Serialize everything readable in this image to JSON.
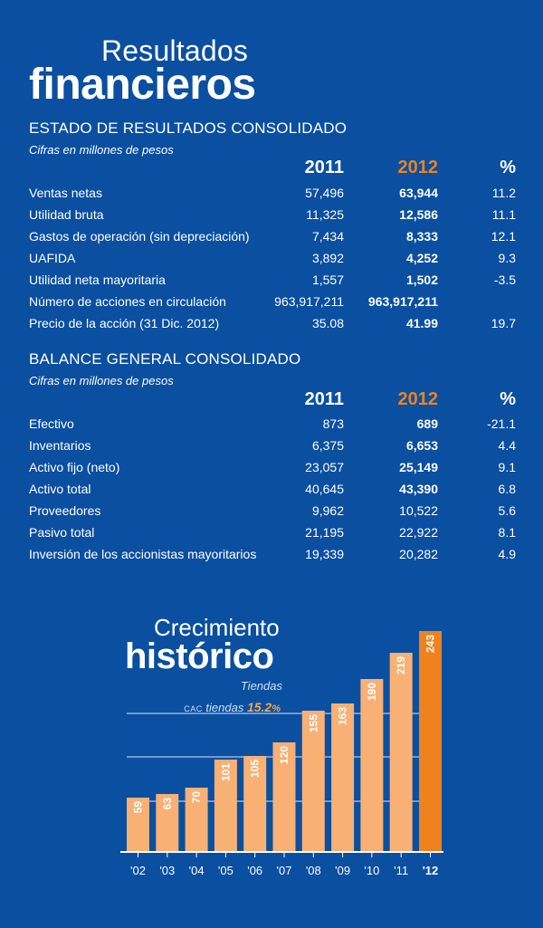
{
  "header": {
    "title_line1": "Resultados",
    "title_line2": "financieros"
  },
  "income": {
    "title": "ESTADO DE RESULTADOS CONSOLIDADO",
    "subtitle": "Cifras en millones de pesos",
    "col_2011": "2011",
    "col_2012": "2012",
    "col_pct": "%",
    "rows": [
      {
        "label": "Ventas netas",
        "v2011": "57,496",
        "v2012": "63,944",
        "pct": "11.2"
      },
      {
        "label": "Utilidad bruta",
        "v2011": "11,325",
        "v2012": "12,586",
        "pct": "11.1"
      },
      {
        "label": "Gastos de operación (sin depreciación)",
        "v2011": "7,434",
        "v2012": "8,333",
        "pct": "12.1"
      },
      {
        "label": "UAFIDA",
        "v2011": "3,892",
        "v2012": "4,252",
        "pct": "9.3"
      },
      {
        "label": "Utilidad neta mayoritaria",
        "v2011": "1,557",
        "v2012": "1,502",
        "pct": "-3.5"
      },
      {
        "label": "Número de acciones en circulación",
        "v2011": "963,917,211",
        "v2012": "963,917,211",
        "pct": ""
      },
      {
        "label": "Precio de la acción (31 Dic. 2012)",
        "v2011": "35.08",
        "v2012": "41.99",
        "pct": "19.7"
      }
    ]
  },
  "balance": {
    "title": "BALANCE GENERAL CONSOLIDADO",
    "subtitle": "Cifras en millones de pesos",
    "col_2011": "2011",
    "col_2012": "2012",
    "col_pct": "%",
    "rows": [
      {
        "label": "Efectivo",
        "v2011": "873",
        "v2012": "689",
        "pct": "-21.1"
      },
      {
        "label": "Inventarios",
        "v2011": "6,375",
        "v2012": "6,653",
        "pct": "4.4"
      },
      {
        "label": "Activo fijo (neto)",
        "v2011": "23,057",
        "v2012": "25,149",
        "pct": "9.1"
      },
      {
        "label": "Activo total",
        "v2011": "40,645",
        "v2012": "43,390",
        "pct": "6.8"
      },
      {
        "label": "Proveedores",
        "v2011": "9,962",
        "v2012": "10,522",
        "pct": "5.6"
      },
      {
        "label": "Pasivo total",
        "v2011": "21,195",
        "v2012": "22,922",
        "pct": "8.1"
      },
      {
        "label": "Inversión de los accionistas mayoritarios",
        "v2011": "19,339",
        "v2012": "20,282",
        "pct": "4.9"
      }
    ]
  },
  "growth": {
    "title_line1": "Crecimiento",
    "title_line2": "histórico",
    "subtitle": "Tiendas",
    "cagr_prefix": "CAC",
    "cagr_label": "tiendas",
    "cagr_value": "15.2",
    "cagr_unit": "%"
  },
  "colors": {
    "background": "#0a4fa0",
    "bar": "#f8b074",
    "bar_highlight": "#f0821e",
    "accent": "#f0821e"
  },
  "chart_data": {
    "type": "bar",
    "title": "Crecimiento histórico",
    "ylabel": "Tiendas",
    "categories": [
      "'02",
      "'03",
      "'04",
      "'05",
      "'06",
      "'07",
      "'08",
      "'09",
      "'10",
      "'11",
      "'12"
    ],
    "values": [
      59,
      63,
      70,
      101,
      105,
      120,
      155,
      163,
      190,
      219,
      243
    ],
    "highlight_index": 10,
    "ylim": [
      0,
      245
    ],
    "grid": true
  }
}
